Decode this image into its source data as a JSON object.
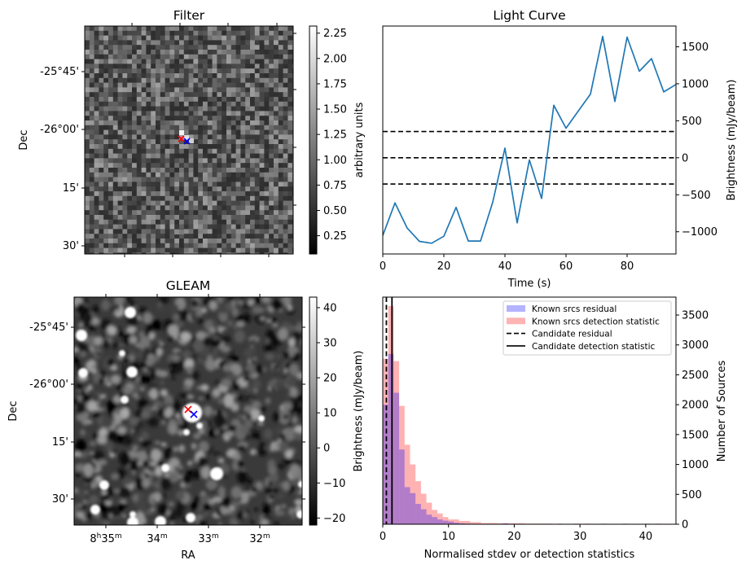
{
  "figure": {
    "panels": [
      "Filter",
      "Light Curve",
      "GLEAM",
      "Histogram"
    ]
  },
  "chart_data": [
    {
      "type": "heatmap",
      "title": "Filter",
      "xlabel": "",
      "ylabel": "Dec",
      "ytick_labels": [
        "-25°45'",
        "-26°00'",
        "15'",
        "30'"
      ],
      "colorbar": {
        "label": "arbitrary units",
        "range": [
          0.07,
          2.32
        ],
        "ticks": [
          "0.25",
          "0.50",
          "0.75",
          "1.00",
          "1.25",
          "1.50",
          "1.75",
          "2.00",
          "2.25"
        ],
        "colormap": "gray"
      },
      "markers": [
        {
          "name": "red-cross",
          "color": "#ff0000",
          "symbol": "x"
        },
        {
          "name": "blue-cross",
          "color": "#0000ff",
          "symbol": "x"
        }
      ]
    },
    {
      "type": "line",
      "title": "Light Curve",
      "xlabel": "Time (s)",
      "ylabel": "Brightness (mJy/beam)",
      "xlim": [
        0,
        96
      ],
      "ylim": [
        -1300,
        1780
      ],
      "xtick_labels": [
        "0",
        "20",
        "40",
        "60",
        "80"
      ],
      "xticks": [
        0,
        20,
        40,
        60,
        80
      ],
      "ytick_labels": [
        "−1000",
        "−500",
        "0",
        "500",
        "1000",
        "1500"
      ],
      "yticks": [
        -1000,
        -500,
        0,
        500,
        1000,
        1500
      ],
      "series": [
        {
          "name": "light curve",
          "color": "#1f77b4",
          "x": [
            0,
            4,
            8,
            12,
            16,
            20,
            24,
            28,
            32,
            36,
            40,
            44,
            48,
            52,
            56,
            60,
            64,
            68,
            72,
            76,
            80,
            84,
            88,
            92,
            96
          ],
          "y": [
            -1050,
            -610,
            -950,
            -1130,
            -1155,
            -1060,
            -670,
            -1125,
            -1125,
            -600,
            130,
            -880,
            -30,
            -550,
            710,
            400,
            630,
            860,
            1640,
            760,
            1630,
            1170,
            1340,
            890,
            990
          ]
        }
      ],
      "hlines": [
        {
          "y": 355,
          "style": "dashed",
          "color": "#000000"
        },
        {
          "y": 0,
          "style": "dashed",
          "color": "#000000"
        },
        {
          "y": -355,
          "style": "dashed",
          "color": "#000000"
        }
      ],
      "grid": false,
      "yaxis_side": "right"
    },
    {
      "type": "heatmap",
      "title": "GLEAM",
      "xlabel": "RA",
      "ylabel": "Dec",
      "xtick_labels": [
        "8h35m",
        "34m",
        "33m",
        "32m"
      ],
      "ytick_labels": [
        "-25°45'",
        "-26°00'",
        "15'",
        "30'"
      ],
      "colorbar": {
        "label": "Brightness (mJy/beam)",
        "range": [
          -22,
          43
        ],
        "ticks": [
          "−20",
          "−10",
          "0",
          "10",
          "20",
          "30",
          "40"
        ],
        "colormap": "gray"
      },
      "markers": [
        {
          "name": "red-cross",
          "color": "#ff0000",
          "symbol": "x"
        },
        {
          "name": "blue-cross",
          "color": "#0000ff",
          "symbol": "x"
        }
      ]
    },
    {
      "type": "bar",
      "title": "",
      "xlabel": "Normalised stdev or detection statistics",
      "ylabel": "Number of Sources",
      "xlim": [
        0,
        44.6
      ],
      "ylim": [
        0,
        3800
      ],
      "xtick_labels": [
        "0",
        "10",
        "20",
        "30",
        "40"
      ],
      "xticks": [
        0,
        10,
        20,
        30,
        40
      ],
      "ytick_labels": [
        "0",
        "500",
        "1000",
        "1500",
        "2000",
        "2500",
        "3000",
        "3500"
      ],
      "yticks": [
        0,
        500,
        1000,
        1500,
        2000,
        2500,
        3000,
        3500
      ],
      "yaxis_side": "right",
      "bin_width": 0.83,
      "series": [
        {
          "name": "Known srcs residual",
          "color": "#0000ff",
          "alpha": 0.3,
          "bin_starts": [
            0,
            0.83,
            1.66,
            2.49,
            3.32,
            4.15,
            4.98,
            5.81,
            6.64,
            7.47,
            8.3,
            9.13,
            9.96,
            10.79,
            11.62,
            12.45,
            13.28,
            14.11,
            14.94,
            15.77,
            16.6,
            17.43,
            18.26,
            19.09,
            19.92
          ],
          "values": [
            2000,
            2850,
            2200,
            1250,
            620,
            520,
            340,
            250,
            160,
            120,
            80,
            60,
            45,
            25,
            15,
            10,
            8,
            6,
            5,
            4,
            3,
            3,
            15,
            4,
            4
          ]
        },
        {
          "name": "Known srcs detection statistic",
          "color": "#ff0000",
          "alpha": 0.3,
          "bin_starts": [
            0,
            0.83,
            1.66,
            2.49,
            3.32,
            4.15,
            4.98,
            5.81,
            6.64,
            7.47,
            8.3,
            9.13,
            9.96,
            10.79,
            11.62,
            12.45,
            13.28,
            14.11,
            14.94,
            15.77,
            16.6,
            17.43,
            18.26,
            19.09,
            19.92,
            20.75,
            21.58,
            22.41,
            23.24,
            24.07,
            24.9,
            26.56,
            29.05,
            30.71,
            33.2,
            36.52,
            39.84,
            41.5
          ],
          "values": [
            2770,
            3650,
            2730,
            1980,
            1330,
            1000,
            720,
            510,
            360,
            240,
            180,
            120,
            80,
            80,
            55,
            55,
            35,
            35,
            20,
            20,
            20,
            15,
            15,
            15,
            15,
            15,
            10,
            10,
            10,
            10,
            10,
            10,
            10,
            10,
            10,
            10,
            10,
            10
          ]
        }
      ],
      "vlines": [
        {
          "name": "Candidate residual",
          "x": 0.55,
          "style": "dashed",
          "color": "#000000"
        },
        {
          "name": "Candidate detection statistic",
          "x": 1.4,
          "style": "solid",
          "color": "#000000"
        }
      ],
      "legend": {
        "placement": "top-right",
        "entries": [
          {
            "label": "Known srcs residual",
            "kind": "patch",
            "color": "#b3b3ff"
          },
          {
            "label": "Known srcs detection statistic",
            "kind": "patch",
            "color": "#ffb3b3"
          },
          {
            "label": "Candidate residual",
            "kind": "dashed-line",
            "color": "#000000"
          },
          {
            "label": "Candidate detection statistic",
            "kind": "solid-line",
            "color": "#000000"
          }
        ]
      }
    }
  ]
}
